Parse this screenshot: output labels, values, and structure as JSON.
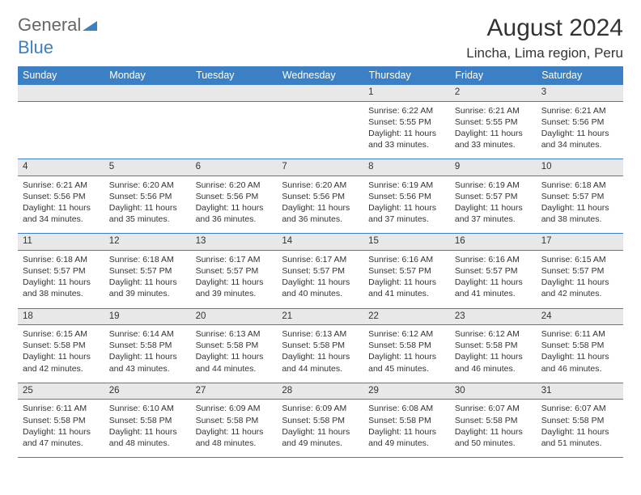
{
  "logo": {
    "text1": "General",
    "text2": "Blue"
  },
  "title": "August 2024",
  "location": "Lincha, Lima region, Peru",
  "header_color": "#3b7fc4",
  "daynum_bg": "#e8e8e8",
  "border_color": "#3b7fc4",
  "weekdays": [
    "Sunday",
    "Monday",
    "Tuesday",
    "Wednesday",
    "Thursday",
    "Friday",
    "Saturday"
  ],
  "weeks": [
    {
      "days": [
        {
          "num": "",
          "lines": []
        },
        {
          "num": "",
          "lines": []
        },
        {
          "num": "",
          "lines": []
        },
        {
          "num": "",
          "lines": []
        },
        {
          "num": "1",
          "lines": [
            "Sunrise: 6:22 AM",
            "Sunset: 5:55 PM",
            "Daylight: 11 hours and 33 minutes."
          ]
        },
        {
          "num": "2",
          "lines": [
            "Sunrise: 6:21 AM",
            "Sunset: 5:55 PM",
            "Daylight: 11 hours and 33 minutes."
          ]
        },
        {
          "num": "3",
          "lines": [
            "Sunrise: 6:21 AM",
            "Sunset: 5:56 PM",
            "Daylight: 11 hours and 34 minutes."
          ]
        }
      ]
    },
    {
      "days": [
        {
          "num": "4",
          "lines": [
            "Sunrise: 6:21 AM",
            "Sunset: 5:56 PM",
            "Daylight: 11 hours and 34 minutes."
          ]
        },
        {
          "num": "5",
          "lines": [
            "Sunrise: 6:20 AM",
            "Sunset: 5:56 PM",
            "Daylight: 11 hours and 35 minutes."
          ]
        },
        {
          "num": "6",
          "lines": [
            "Sunrise: 6:20 AM",
            "Sunset: 5:56 PM",
            "Daylight: 11 hours and 36 minutes."
          ]
        },
        {
          "num": "7",
          "lines": [
            "Sunrise: 6:20 AM",
            "Sunset: 5:56 PM",
            "Daylight: 11 hours and 36 minutes."
          ]
        },
        {
          "num": "8",
          "lines": [
            "Sunrise: 6:19 AM",
            "Sunset: 5:56 PM",
            "Daylight: 11 hours and 37 minutes."
          ]
        },
        {
          "num": "9",
          "lines": [
            "Sunrise: 6:19 AM",
            "Sunset: 5:57 PM",
            "Daylight: 11 hours and 37 minutes."
          ]
        },
        {
          "num": "10",
          "lines": [
            "Sunrise: 6:18 AM",
            "Sunset: 5:57 PM",
            "Daylight: 11 hours and 38 minutes."
          ]
        }
      ]
    },
    {
      "days": [
        {
          "num": "11",
          "lines": [
            "Sunrise: 6:18 AM",
            "Sunset: 5:57 PM",
            "Daylight: 11 hours and 38 minutes."
          ]
        },
        {
          "num": "12",
          "lines": [
            "Sunrise: 6:18 AM",
            "Sunset: 5:57 PM",
            "Daylight: 11 hours and 39 minutes."
          ]
        },
        {
          "num": "13",
          "lines": [
            "Sunrise: 6:17 AM",
            "Sunset: 5:57 PM",
            "Daylight: 11 hours and 39 minutes."
          ]
        },
        {
          "num": "14",
          "lines": [
            "Sunrise: 6:17 AM",
            "Sunset: 5:57 PM",
            "Daylight: 11 hours and 40 minutes."
          ]
        },
        {
          "num": "15",
          "lines": [
            "Sunrise: 6:16 AM",
            "Sunset: 5:57 PM",
            "Daylight: 11 hours and 41 minutes."
          ]
        },
        {
          "num": "16",
          "lines": [
            "Sunrise: 6:16 AM",
            "Sunset: 5:57 PM",
            "Daylight: 11 hours and 41 minutes."
          ]
        },
        {
          "num": "17",
          "lines": [
            "Sunrise: 6:15 AM",
            "Sunset: 5:57 PM",
            "Daylight: 11 hours and 42 minutes."
          ]
        }
      ]
    },
    {
      "days": [
        {
          "num": "18",
          "lines": [
            "Sunrise: 6:15 AM",
            "Sunset: 5:58 PM",
            "Daylight: 11 hours and 42 minutes."
          ]
        },
        {
          "num": "19",
          "lines": [
            "Sunrise: 6:14 AM",
            "Sunset: 5:58 PM",
            "Daylight: 11 hours and 43 minutes."
          ]
        },
        {
          "num": "20",
          "lines": [
            "Sunrise: 6:13 AM",
            "Sunset: 5:58 PM",
            "Daylight: 11 hours and 44 minutes."
          ]
        },
        {
          "num": "21",
          "lines": [
            "Sunrise: 6:13 AM",
            "Sunset: 5:58 PM",
            "Daylight: 11 hours and 44 minutes."
          ]
        },
        {
          "num": "22",
          "lines": [
            "Sunrise: 6:12 AM",
            "Sunset: 5:58 PM",
            "Daylight: 11 hours and 45 minutes."
          ]
        },
        {
          "num": "23",
          "lines": [
            "Sunrise: 6:12 AM",
            "Sunset: 5:58 PM",
            "Daylight: 11 hours and 46 minutes."
          ]
        },
        {
          "num": "24",
          "lines": [
            "Sunrise: 6:11 AM",
            "Sunset: 5:58 PM",
            "Daylight: 11 hours and 46 minutes."
          ]
        }
      ]
    },
    {
      "days": [
        {
          "num": "25",
          "lines": [
            "Sunrise: 6:11 AM",
            "Sunset: 5:58 PM",
            "Daylight: 11 hours and 47 minutes."
          ]
        },
        {
          "num": "26",
          "lines": [
            "Sunrise: 6:10 AM",
            "Sunset: 5:58 PM",
            "Daylight: 11 hours and 48 minutes."
          ]
        },
        {
          "num": "27",
          "lines": [
            "Sunrise: 6:09 AM",
            "Sunset: 5:58 PM",
            "Daylight: 11 hours and 48 minutes."
          ]
        },
        {
          "num": "28",
          "lines": [
            "Sunrise: 6:09 AM",
            "Sunset: 5:58 PM",
            "Daylight: 11 hours and 49 minutes."
          ]
        },
        {
          "num": "29",
          "lines": [
            "Sunrise: 6:08 AM",
            "Sunset: 5:58 PM",
            "Daylight: 11 hours and 49 minutes."
          ]
        },
        {
          "num": "30",
          "lines": [
            "Sunrise: 6:07 AM",
            "Sunset: 5:58 PM",
            "Daylight: 11 hours and 50 minutes."
          ]
        },
        {
          "num": "31",
          "lines": [
            "Sunrise: 6:07 AM",
            "Sunset: 5:58 PM",
            "Daylight: 11 hours and 51 minutes."
          ]
        }
      ]
    }
  ]
}
